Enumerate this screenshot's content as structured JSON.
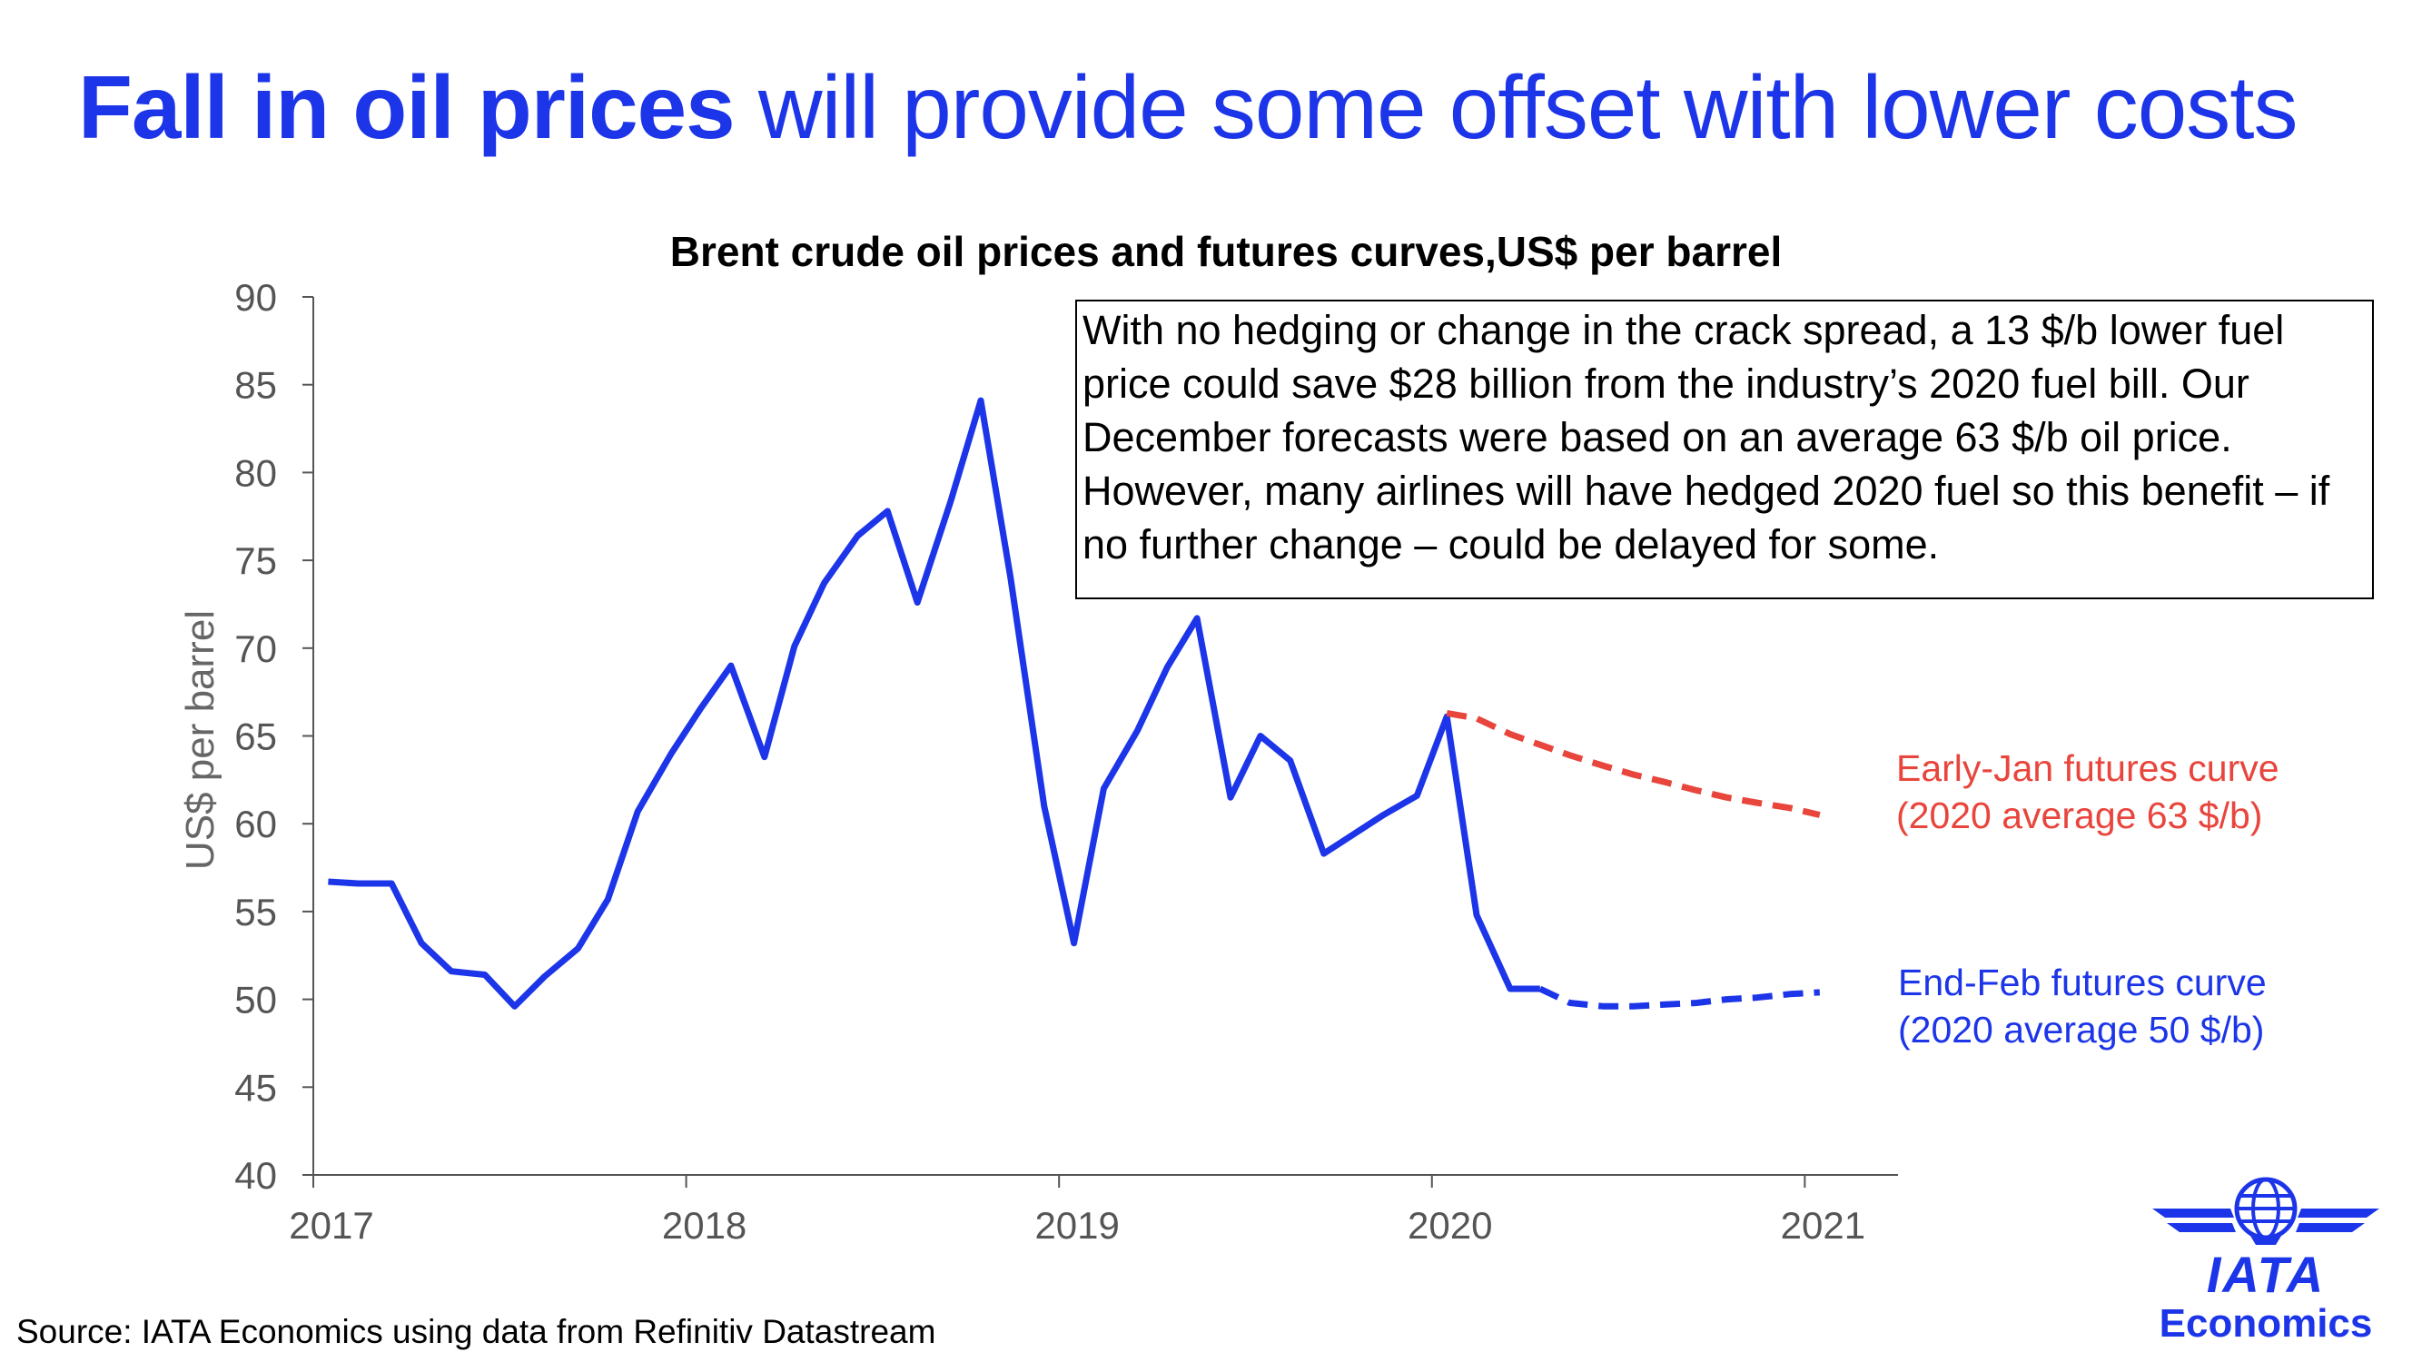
{
  "headline": {
    "bold_part": "Fall in oil prices",
    "rest": " will provide some offset with lower costs",
    "color": "#1c35e8"
  },
  "note": "With no hedging or change in the crack spread, a 13 $/b lower fuel price could save $28 billion from the industry’s 2020 fuel bill. Our December forecasts were based on an average 63 $/b oil price. However, many airlines will have hedged 2020 fuel so this benefit – if no further change – could be delayed for some.",
  "source": "Source: IATA Economics using data from Refinitiv Datastream",
  "logo": {
    "iata": "IATA",
    "economics": "Economics",
    "icon": "iata-globe-wings-icon"
  },
  "chart_data": {
    "type": "line",
    "title": "Brent crude oil prices and futures curves,US$ per barrel",
    "xlabel": "",
    "ylabel": "US$ per barrel",
    "xlim": [
      2017,
      2021.25
    ],
    "ylim": [
      40,
      90
    ],
    "yticks": [
      40,
      45,
      50,
      55,
      60,
      65,
      70,
      75,
      80,
      85,
      90
    ],
    "xticks": [
      2017,
      2018,
      2019,
      2020,
      2021
    ],
    "series": [
      {
        "name": "Brent crude oil price",
        "style": "solid",
        "color": "#1c35e8",
        "x": [
          2017.04,
          2017.12,
          2017.21,
          2017.29,
          2017.37,
          2017.46,
          2017.54,
          2017.62,
          2017.71,
          2017.79,
          2017.87,
          2017.96,
          2018.04,
          2018.12,
          2018.21,
          2018.29,
          2018.37,
          2018.46,
          2018.54,
          2018.62,
          2018.71,
          2018.79,
          2018.87,
          2018.96,
          2019.04,
          2019.12,
          2019.21,
          2019.29,
          2019.37,
          2019.46,
          2019.54,
          2019.62,
          2019.71,
          2019.79,
          2019.87,
          2019.96,
          2020.04,
          2020.12,
          2020.21,
          2020.29
        ],
        "values": [
          56.7,
          56.6,
          56.6,
          53.2,
          51.6,
          51.4,
          49.6,
          51.3,
          52.9,
          55.7,
          60.7,
          64.0,
          66.6,
          69.0,
          63.8,
          70.1,
          73.7,
          76.4,
          77.8,
          72.6,
          78.4,
          84.1,
          74.0,
          61.0,
          53.2,
          62.0,
          65.3,
          68.9,
          71.7,
          61.5,
          65.0,
          63.6,
          58.3,
          59.4,
          60.5,
          61.6,
          66.1,
          54.8,
          50.6,
          50.6
        ]
      },
      {
        "name": "End-Feb futures curve",
        "label_line1": "End-Feb futures curve",
        "label_line2": "(2020 average 50 $/b)",
        "style": "dashed",
        "color": "#1c35e8",
        "x": [
          2020.29,
          2020.37,
          2020.46,
          2020.54,
          2020.62,
          2020.71,
          2020.79,
          2020.87,
          2020.96,
          2021.04
        ],
        "values": [
          50.6,
          49.8,
          49.6,
          49.6,
          49.7,
          49.8,
          50.0,
          50.1,
          50.3,
          50.4
        ]
      },
      {
        "name": "Early-Jan futures curve",
        "label_line1": "Early-Jan futures curve",
        "label_line2": "(2020 average 63 $/b)",
        "style": "dashed",
        "color": "#e8453c",
        "x": [
          2020.04,
          2020.12,
          2020.21,
          2020.29,
          2020.37,
          2020.46,
          2020.54,
          2020.62,
          2020.71,
          2020.79,
          2020.87,
          2020.96,
          2021.04
        ],
        "values": [
          66.3,
          66.0,
          65.1,
          64.5,
          63.9,
          63.3,
          62.8,
          62.4,
          61.9,
          61.5,
          61.2,
          60.9,
          60.5
        ]
      }
    ]
  }
}
